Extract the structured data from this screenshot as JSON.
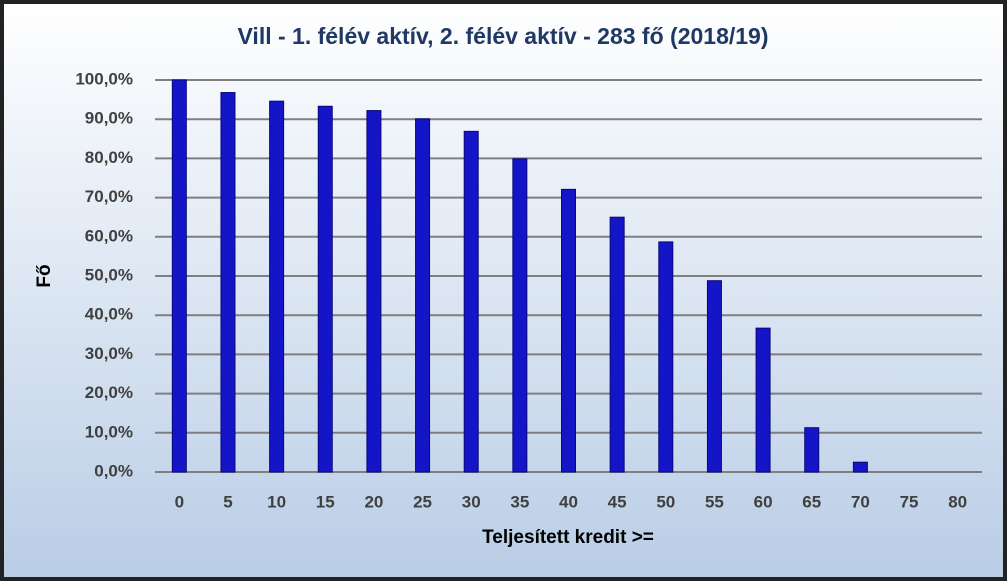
{
  "chart_data": {
    "type": "bar",
    "title": "Vill - 1. félév aktív, 2. félév aktív - 283 fő (2018/19)",
    "x_label": "Teljesített kredit >=",
    "y_label": "Fő",
    "categories": [
      "0",
      "5",
      "10",
      "15",
      "20",
      "25",
      "30",
      "35",
      "40",
      "45",
      "50",
      "55",
      "60",
      "65",
      "70",
      "75",
      "80"
    ],
    "values": [
      100,
      96.8,
      94.6,
      93.3,
      92.2,
      90.1,
      86.9,
      79.9,
      72.1,
      65.0,
      58.7,
      48.8,
      36.7,
      11.3,
      2.5,
      0,
      0
    ],
    "color": "#1515c8",
    "ylim": [
      0,
      100
    ],
    "yticks": [
      {
        "value": 0,
        "label": "0,0%"
      },
      {
        "value": 10,
        "label": "10,0%"
      },
      {
        "value": 20,
        "label": "20,0%"
      },
      {
        "value": 30,
        "label": "30,0%"
      },
      {
        "value": 40,
        "label": "40,0%"
      },
      {
        "value": 50,
        "label": "50,0%"
      },
      {
        "value": 60,
        "label": "60,0%"
      },
      {
        "value": 70,
        "label": "70,0%"
      },
      {
        "value": 80,
        "label": "80,0%"
      },
      {
        "value": 90,
        "label": "90,0%"
      },
      {
        "value": 100,
        "label": "100,0%"
      }
    ],
    "grid": true
  }
}
